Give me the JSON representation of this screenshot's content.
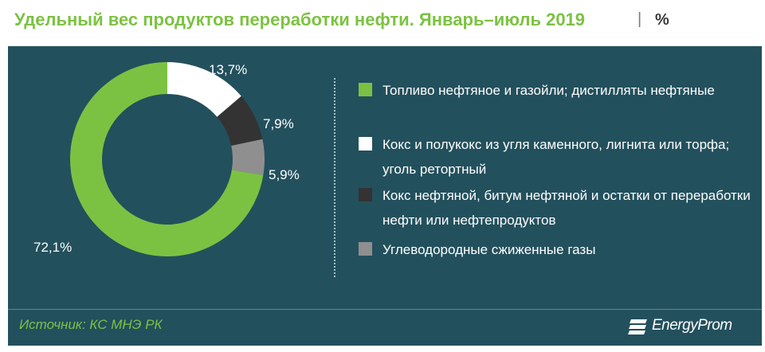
{
  "header": {
    "title": "Удельный вес продуктов переработки нефти. Январь–июль 2019",
    "separator": "|",
    "unit": "%"
  },
  "chart_data": {
    "type": "pie",
    "variant": "donut",
    "title": "Удельный вес продуктов переработки нефти. Январь–июль 2019",
    "unit": "%",
    "categories": [
      "Кокс и полукокс из угля каменного, лигнита или торфа; уголь ретортный",
      "Кокс нефтяной, битум нефтяной и остатки от переработки нефти или нефтепродуктов",
      "Углеводородные сжиженные газы",
      "Топливо нефтяное и газойли; дистилляты нефтяные"
    ],
    "values": [
      13.7,
      7.9,
      5.9,
      72.1
    ],
    "value_labels": [
      "13,7%",
      "7,9%",
      "5,9%",
      "72,1%"
    ],
    "colors": [
      "#ffffff",
      "#333333",
      "#8f8f8f",
      "#7cc242"
    ],
    "legend": [
      {
        "label": "Топливо нефтяное и газойли; дистилляты нефтяные",
        "color": "#7cc242"
      },
      {
        "label": "Кокс и полукокс из угля каменного, лигнита или торфа; уголь ретортный",
        "color": "#ffffff"
      },
      {
        "label": "Кокс нефтяной, битум нефтяной и остатки от переработки нефти или нефтепродуктов",
        "color": "#333333"
      },
      {
        "label": "Углеводородные сжиженные газы",
        "color": "#8f8f8f"
      }
    ],
    "legend_position": "right"
  },
  "footer": {
    "source": "Источник: КС МНЭ РК",
    "brand": "EnergyProm"
  },
  "colors": {
    "background": "#23505d",
    "accent": "#7cc242",
    "text": "#ffffff"
  }
}
